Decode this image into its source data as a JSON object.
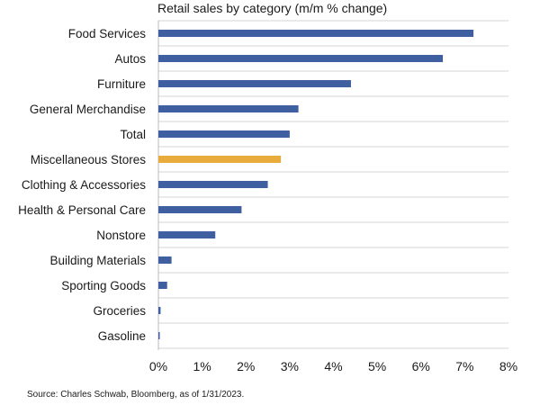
{
  "colors": {
    "bar_default": "#3f5fa0",
    "bar_highlight": "#e8ac3c",
    "gridline": "#d4d4d4",
    "axis": "#b8b8b8"
  },
  "chart_data": {
    "type": "bar",
    "orientation": "horizontal",
    "title": "Retail sales by category (m/m % change)",
    "xlabel": "",
    "ylabel": "",
    "categories": [
      "Food Services",
      "Autos",
      "Furniture",
      "General Merchandise",
      "Total",
      "Miscellaneous Stores",
      "Clothing & Accessories",
      "Health & Personal Care",
      "Nonstore",
      "Building Materials",
      "Sporting Goods",
      "Groceries",
      "Gasoline"
    ],
    "values": [
      7.2,
      6.5,
      4.4,
      3.2,
      3.0,
      2.8,
      2.5,
      1.9,
      1.3,
      0.3,
      0.2,
      0.05,
      0.03
    ],
    "highlight": "Miscellaneous Stores",
    "xlim": [
      0,
      8
    ],
    "xticks": [
      0,
      1,
      2,
      3,
      4,
      5,
      6,
      7,
      8
    ],
    "xtick_labels": [
      "0%",
      "1%",
      "2%",
      "3%",
      "4%",
      "5%",
      "6%",
      "7%",
      "8%"
    ],
    "grid": true,
    "source": "Source: Charles Schwab, Bloomberg, as of 1/31/2023."
  }
}
